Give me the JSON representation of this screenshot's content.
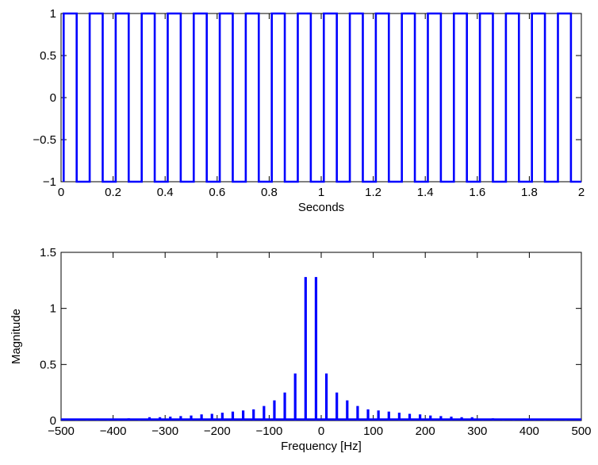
{
  "chart_data": [
    {
      "type": "line",
      "xlabel": "Seconds",
      "ylabel": "",
      "xlim": [
        0,
        2
      ],
      "ylim": [
        -1,
        1
      ],
      "x_ticks": [
        "0",
        "0.2",
        "0.4",
        "0.6",
        "0.8",
        "1",
        "1.2",
        "1.4",
        "1.6",
        "1.8",
        "2"
      ],
      "y_ticks": [
        "−1",
        "−0.5",
        "0",
        "0.5",
        "1"
      ],
      "grid": false,
      "series": [
        {
          "waveform": "square",
          "period_s": 0.1,
          "duty_cycle_high": 0.5,
          "levels": [
            -1,
            1
          ],
          "x_start": 0.01,
          "x_end": 2.0,
          "color": "#0000ff"
        }
      ]
    },
    {
      "type": "line",
      "xlabel": "Frequency [Hz]",
      "ylabel": "Magnitude",
      "xlim": [
        -500,
        500
      ],
      "ylim": [
        0,
        1.5
      ],
      "x_ticks": [
        "−500",
        "−400",
        "−300",
        "−200",
        "−100",
        "0",
        "100",
        "200",
        "300",
        "400",
        "500"
      ],
      "y_ticks": [
        "0",
        "0.5",
        "1",
        "1.5"
      ],
      "grid": false,
      "series": [
        {
          "color": "#0000ff",
          "peaks_x": [
            -470,
            -450,
            -430,
            -410,
            -390,
            -370,
            -350,
            -330,
            -310,
            -290,
            -270,
            -250,
            -230,
            -210,
            -190,
            -170,
            -150,
            -130,
            -110,
            -90,
            -70,
            -50,
            -30,
            -10,
            10,
            30,
            50,
            70,
            90,
            110,
            130,
            150,
            170,
            190,
            210,
            230,
            250,
            270,
            290,
            310,
            330,
            350,
            370,
            390,
            410,
            430,
            450,
            470
          ],
          "peaks_y": [
            0.01,
            0.015,
            0.018,
            0.01,
            0.015,
            0.02,
            0.01,
            0.03,
            0.03,
            0.035,
            0.04,
            0.045,
            0.055,
            0.06,
            0.07,
            0.08,
            0.09,
            0.1,
            0.13,
            0.18,
            0.25,
            0.42,
            1.28,
            1.28,
            0.42,
            0.25,
            0.18,
            0.13,
            0.1,
            0.09,
            0.08,
            0.07,
            0.06,
            0.055,
            0.045,
            0.04,
            0.035,
            0.03,
            0.03,
            0.01,
            0.02,
            0.015,
            0.01,
            0.018,
            0.015,
            0.01,
            0.01,
            0.01
          ],
          "noise_floor": 0.01
        }
      ]
    }
  ]
}
